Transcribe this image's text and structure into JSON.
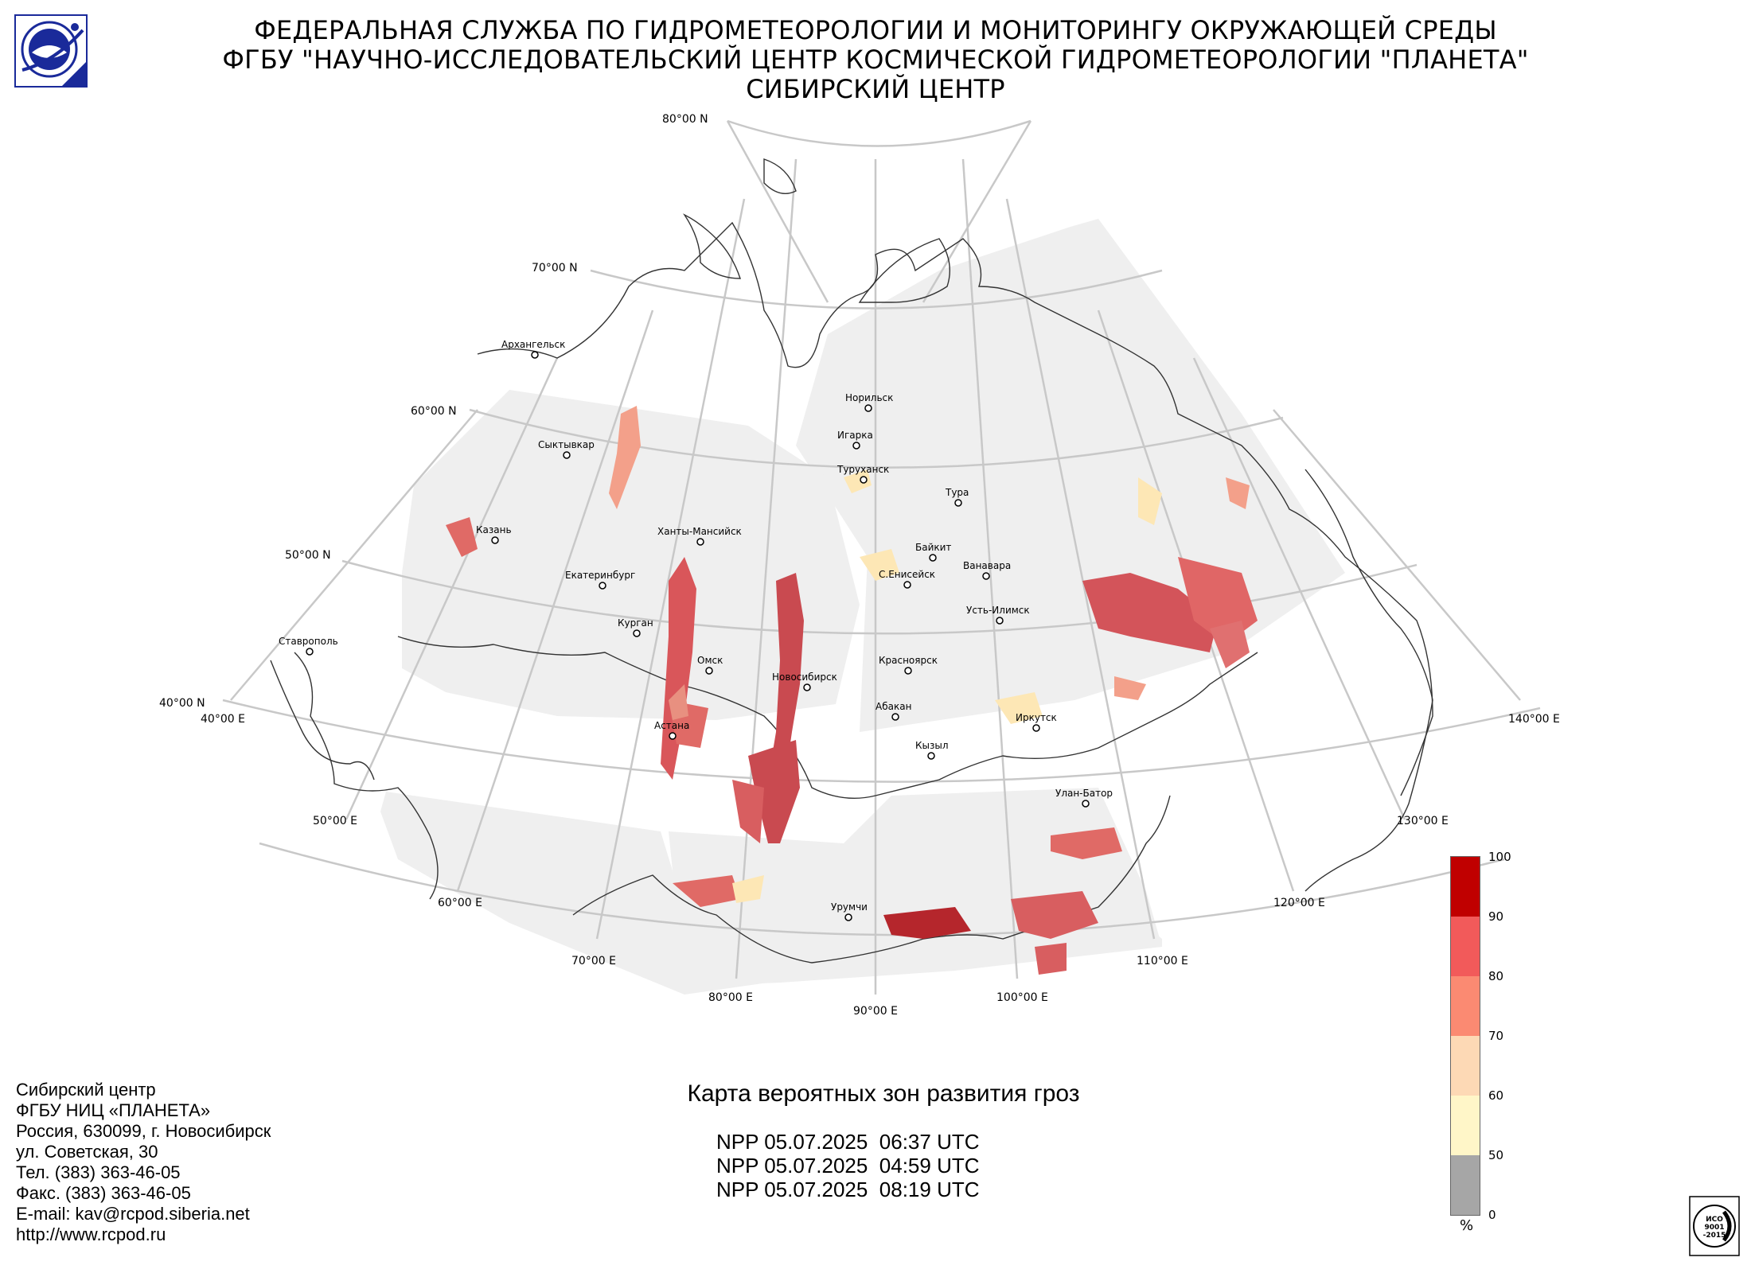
{
  "header": {
    "line1": "ФЕДЕРАЛЬНАЯ СЛУЖБА ПО ГИДРОМЕТЕОРОЛОГИИ И МОНИТОРИНГУ ОКРУЖАЮЩЕЙ СРЕДЫ",
    "line2": "ФГБУ \"НАУЧНО-ИССЛЕДОВАТЕЛЬСКИЙ ЦЕНТР КОСМИЧЕСКОЙ ГИДРОМЕТЕОРОЛОГИИ \"ПЛАНЕТА\"",
    "line3": "СИБИРСКИЙ ЦЕНТР"
  },
  "map": {
    "lat_labels": [
      "80°00 N",
      "70°00 N",
      "60°00 N",
      "50°00 N",
      "40°00 N"
    ],
    "lon_labels": [
      "40°00 E",
      "50°00 E",
      "60°00 E",
      "70°00 E",
      "80°00 E",
      "90°00 E",
      "100°00 E",
      "110°00 E",
      "120°00 E",
      "130°00 E",
      "140°00 E"
    ],
    "cities": [
      {
        "name": "Архангельск"
      },
      {
        "name": "Норильск"
      },
      {
        "name": "Игарка"
      },
      {
        "name": "Сыктывкар"
      },
      {
        "name": "Туруханск"
      },
      {
        "name": "Тура"
      },
      {
        "name": "Казань"
      },
      {
        "name": "Ханты-Мансийск"
      },
      {
        "name": "Байкит"
      },
      {
        "name": "Ванавара"
      },
      {
        "name": "Екатеринбург"
      },
      {
        "name": "С.Енисейск"
      },
      {
        "name": "Усть-Илимск"
      },
      {
        "name": "Курган"
      },
      {
        "name": "Ставрополь"
      },
      {
        "name": "Омск"
      },
      {
        "name": "Красноярск"
      },
      {
        "name": "Новосибирск"
      },
      {
        "name": "Абакан"
      },
      {
        "name": "Иркутск"
      },
      {
        "name": "Астана"
      },
      {
        "name": "Кызыл"
      },
      {
        "name": "Улан-Батор"
      },
      {
        "name": "Урумчи"
      }
    ]
  },
  "legend": {
    "colors": [
      "#a6a6a6",
      "#fff6c8",
      "#fdd9b5",
      "#fb8a72",
      "#f25a5a",
      "#c00000"
    ],
    "ticks": [
      "100",
      "90",
      "80",
      "70",
      "60",
      "50",
      "0"
    ],
    "unit": "%"
  },
  "contact": {
    "lines": [
      "Сибирский центр",
      "ФГБУ НИЦ «ПЛАНЕТА»",
      "Россия, 630099, г. Новосибирск",
      "ул. Советская, 30",
      "Тел. (383) 363-46-05",
      "Факс. (383) 363-46-05",
      "E-mail: kav@rcpod.siberia.net",
      "http://www.rcpod.ru"
    ]
  },
  "map_title": "Карта вероятных зон развития гроз",
  "passes": [
    "NPP 05.07.2025  06:37 UTC",
    "NPP 05.07.2025  04:59 UTC",
    "NPP 05.07.2025  08:19 UTC"
  ],
  "iso_badge": {
    "line1": "ИСО",
    "line2": "9001",
    "line3": "-2015"
  }
}
